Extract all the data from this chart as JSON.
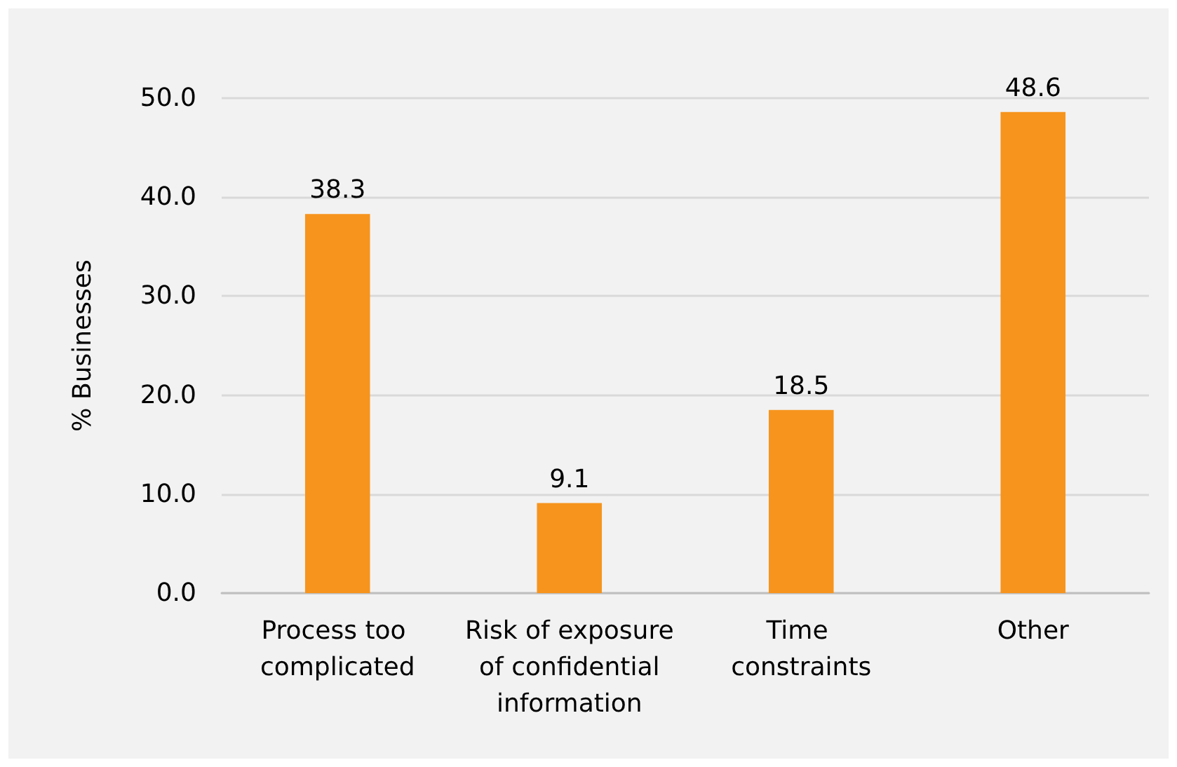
{
  "chart_data": {
    "type": "bar",
    "ylabel": "% Businesses",
    "categories": [
      "Process too complicated",
      "Risk of exposure of confidential information",
      "Time constraints",
      "Other"
    ],
    "values": [
      38.3,
      9.1,
      18.5,
      48.6
    ],
    "color": "#f7941d",
    "ylim": [
      0,
      50
    ],
    "yticks": [
      {
        "value": 0,
        "label": "0.0"
      },
      {
        "value": 10,
        "label": "10.0"
      },
      {
        "value": 20,
        "label": "20.0"
      },
      {
        "value": 30,
        "label": "30.0"
      },
      {
        "value": 40,
        "label": "40.0"
      },
      {
        "value": 50,
        "label": "50.0"
      }
    ],
    "grid": true,
    "data_labels": true
  }
}
